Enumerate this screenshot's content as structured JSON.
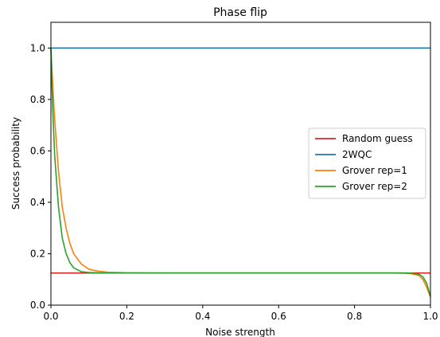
{
  "chart_data": {
    "type": "line",
    "title": "Phase flip",
    "xlabel": "Noise strength",
    "ylabel": "Success probability",
    "xlim": [
      0.0,
      1.0
    ],
    "ylim": [
      0.0,
      1.1
    ],
    "xticks": [
      "0.0",
      "0.2",
      "0.4",
      "0.6",
      "0.8",
      "1.0"
    ],
    "yticks": [
      "0.0",
      "0.2",
      "0.4",
      "0.6",
      "0.8",
      "1.0"
    ],
    "grid": false,
    "legend_position": "center-right",
    "series": [
      {
        "name": "Random guess",
        "color": "#d62728",
        "x": [
          0.0,
          1.0
        ],
        "y": [
          0.125,
          0.125
        ]
      },
      {
        "name": "2WQC",
        "color": "#1f77b4",
        "x": [
          0.0,
          1.0
        ],
        "y": [
          1.0,
          1.0
        ]
      },
      {
        "name": "Grover rep=1",
        "color": "#ff7f0e",
        "x": [
          0.0,
          0.005,
          0.01,
          0.02,
          0.03,
          0.04,
          0.05,
          0.06,
          0.08,
          0.1,
          0.12,
          0.15,
          0.2,
          0.3,
          0.5,
          0.7,
          0.85,
          0.9,
          0.93,
          0.95,
          0.97,
          0.98,
          0.99,
          1.0
        ],
        "y": [
          1.0,
          0.85,
          0.72,
          0.52,
          0.38,
          0.3,
          0.24,
          0.2,
          0.16,
          0.14,
          0.133,
          0.128,
          0.126,
          0.125,
          0.125,
          0.125,
          0.125,
          0.125,
          0.124,
          0.122,
          0.115,
          0.1,
          0.07,
          0.03
        ]
      },
      {
        "name": "Grover rep=2",
        "color": "#2ca02c",
        "x": [
          0.0,
          0.005,
          0.01,
          0.02,
          0.03,
          0.04,
          0.05,
          0.06,
          0.08,
          0.1,
          0.12,
          0.15,
          0.2,
          0.3,
          0.5,
          0.7,
          0.85,
          0.9,
          0.93,
          0.95,
          0.97,
          0.98,
          0.99,
          1.0
        ],
        "y": [
          1.0,
          0.75,
          0.58,
          0.38,
          0.26,
          0.2,
          0.165,
          0.145,
          0.13,
          0.127,
          0.126,
          0.125,
          0.125,
          0.125,
          0.125,
          0.125,
          0.125,
          0.125,
          0.125,
          0.124,
          0.12,
          0.11,
          0.085,
          0.035
        ]
      }
    ]
  }
}
